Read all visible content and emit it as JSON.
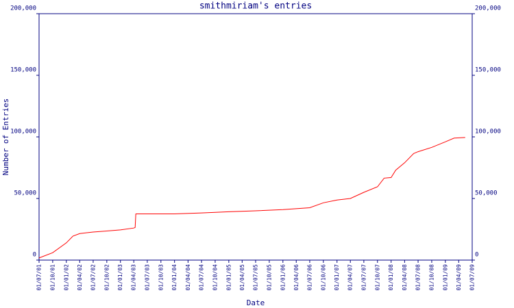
{
  "chart_data": {
    "type": "line",
    "title": "smithmiriam's entries",
    "x_label": "Date",
    "y_label": "Number of Entries",
    "x": [
      "01/07/01",
      "01/10/01",
      "01/01/02",
      "15/02/02",
      "01/04/02",
      "01/07/02",
      "01/10/02",
      "01/01/03",
      "01/04/03",
      "10/04/03",
      "15/04/03",
      "01/07/03",
      "01/01/04",
      "01/07/04",
      "01/01/05",
      "01/07/05",
      "01/01/06",
      "01/07/06",
      "01/10/06",
      "01/01/07",
      "01/04/07",
      "01/07/07",
      "01/10/07",
      "15/11/07",
      "01/01/08",
      "01/02/08",
      "01/04/08",
      "01/06/08",
      "01/07/08",
      "01/10/08",
      "01/01/09",
      "01/03/09",
      "15/05/09"
    ],
    "series": [
      {
        "name": "entries",
        "color": "#ff0000",
        "values": [
          1700,
          6000,
          14000,
          19500,
          21500,
          22800,
          23600,
          24500,
          26000,
          26500,
          37500,
          37500,
          37500,
          38300,
          39200,
          40000,
          41000,
          42500,
          46500,
          48800,
          50000,
          55000,
          59500,
          66500,
          67000,
          73000,
          79000,
          86500,
          88000,
          91500,
          96000,
          99000,
          99500
        ]
      }
    ],
    "xlim": [
      "01/07/01",
      "01/07/09"
    ],
    "xticks": [
      "01/07/01",
      "01/10/01",
      "01/01/02",
      "01/04/02",
      "01/07/02",
      "01/10/02",
      "01/01/03",
      "01/04/03",
      "01/07/03",
      "01/10/03",
      "01/01/04",
      "01/04/04",
      "01/07/04",
      "01/10/04",
      "01/01/05",
      "01/04/05",
      "01/07/05",
      "01/10/05",
      "01/01/06",
      "01/04/06",
      "01/07/06",
      "01/10/06",
      "01/01/07",
      "01/04/07",
      "01/07/07",
      "01/10/07",
      "01/01/08",
      "01/04/08",
      "01/07/08",
      "01/10/08",
      "01/01/09",
      "01/04/09",
      "01/07/09"
    ],
    "ylim": [
      0,
      200000
    ],
    "yticks": [
      0,
      {
        "value": 50000,
        "label": "50,000"
      },
      {
        "value": 100000,
        "label": "100,000"
      },
      {
        "value": 150000,
        "label": "150,000"
      },
      {
        "value": 200000,
        "label": "200,000"
      }
    ],
    "axis_color": "#000080"
  }
}
